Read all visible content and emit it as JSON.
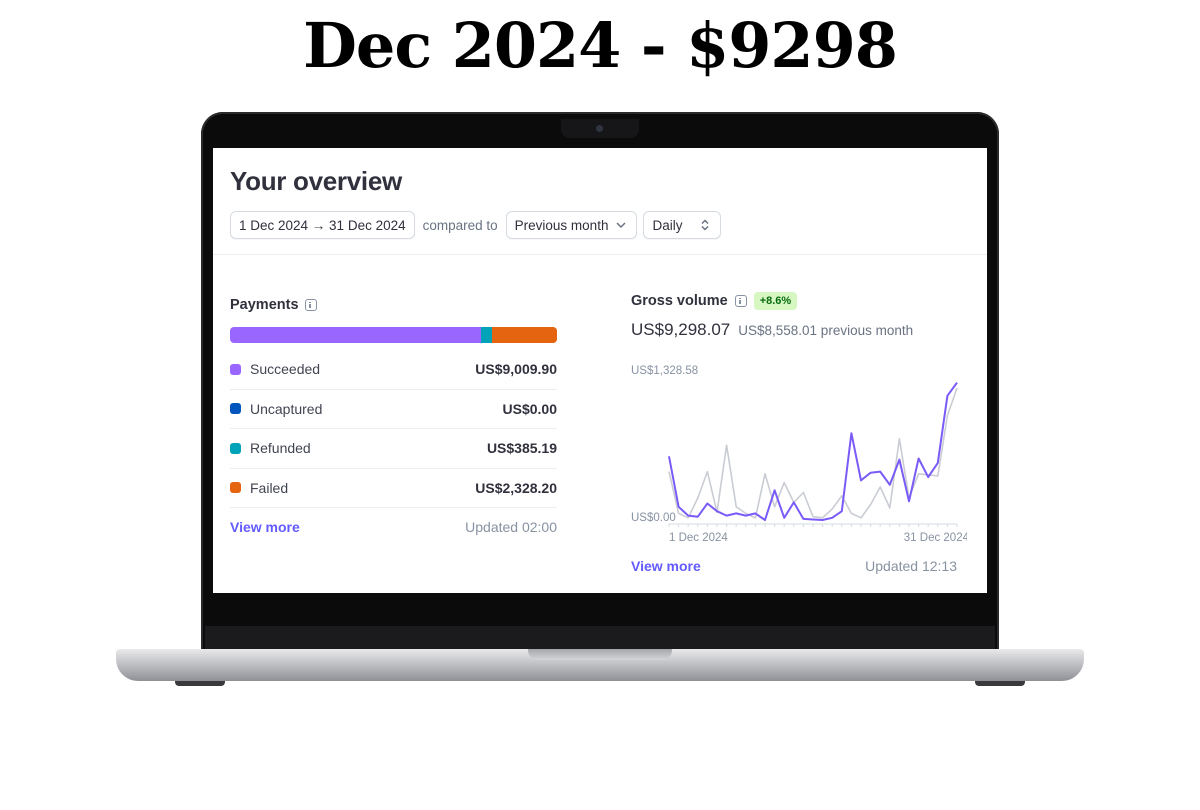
{
  "headline": "Dec 2024 - $9298",
  "overview": {
    "title": "Your overview",
    "date_range": "1 Dec 2024 → 31 Dec 2024",
    "compared_to_label": "compared to",
    "compare_option": "Previous month",
    "interval_option": "Daily"
  },
  "payments": {
    "title": "Payments",
    "bar_shares": [
      0.767,
      0.0,
      0.033,
      0.2
    ],
    "rows": [
      {
        "label": "Succeeded",
        "amount": "US$9,009.90",
        "color": "#9966ff"
      },
      {
        "label": "Uncaptured",
        "amount": "US$0.00",
        "color": "#0055bc"
      },
      {
        "label": "Refunded",
        "amount": "US$385.19",
        "color": "#00a3b7"
      },
      {
        "label": "Failed",
        "amount": "US$2,328.20",
        "color": "#e5640f"
      }
    ],
    "view_more": "View more",
    "updated": "Updated 02:00"
  },
  "gross_volume": {
    "title": "Gross volume",
    "change_badge": "+8.6%",
    "current": "US$9,298.07",
    "previous": "US$8,558.01 previous month",
    "view_more": "View more",
    "updated": "Updated 12:13"
  },
  "chart_data": {
    "type": "line",
    "x": [
      1,
      2,
      3,
      4,
      5,
      6,
      7,
      8,
      9,
      10,
      11,
      12,
      13,
      14,
      15,
      16,
      17,
      18,
      19,
      20,
      21,
      22,
      23,
      24,
      25,
      26,
      27,
      28,
      29,
      30,
      31
    ],
    "x_tick_labels": [
      "1 Dec 2024",
      "31 Dec 2024"
    ],
    "y_tick_labels": [
      "US$1,328.58",
      "US$0.00"
    ],
    "ylim": [
      0,
      1328.58
    ],
    "series": [
      {
        "color": "#7a5af8",
        "values": [
          580,
          120,
          40,
          30,
          150,
          80,
          40,
          60,
          40,
          60,
          0,
          270,
          20,
          160,
          10,
          5,
          0,
          20,
          80,
          790,
          360,
          430,
          440,
          320,
          550,
          170,
          560,
          390,
          520,
          1130,
          1250
        ]
      },
      {
        "color": "#c9cdd3",
        "values": [
          440,
          60,
          20,
          200,
          440,
          70,
          680,
          120,
          60,
          20,
          420,
          120,
          340,
          160,
          250,
          30,
          20,
          100,
          220,
          60,
          20,
          140,
          300,
          110,
          740,
          200,
          420,
          410,
          400,
          950,
          1200
        ]
      }
    ],
    "grid": false,
    "legend": "none"
  }
}
